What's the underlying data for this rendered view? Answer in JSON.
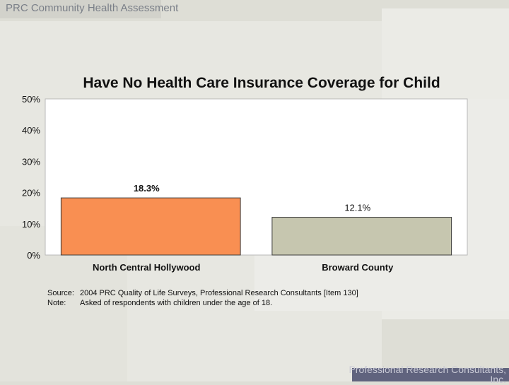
{
  "header": {
    "title": "PRC Community Health Assessment"
  },
  "footer": {
    "company_line1": "Professional Research Consultants,",
    "company_line2": "Inc."
  },
  "colors": {
    "bar1": "#f98f52",
    "bar2": "#c6c6af",
    "plot_bg": "#ffffff"
  },
  "chart_data": {
    "type": "bar",
    "title": "Have No Health Care Insurance Coverage for Child",
    "categories": [
      "North Central Hollywood",
      "Broward County"
    ],
    "values": [
      18.3,
      12.1
    ],
    "data_labels": [
      "18.3%",
      "12.1%"
    ],
    "ylim": [
      0,
      50
    ],
    "yticks": [
      "0%",
      "10%",
      "20%",
      "30%",
      "40%",
      "50%"
    ],
    "xlabel": "",
    "ylabel": ""
  },
  "notes": {
    "source_label": "Source:",
    "source_text": "2004 PRC Quality of Life Surveys, Professional Research Consultants [Item 130]",
    "note_label": "Note:",
    "note_text": "Asked of respondents with children under the age of 18."
  }
}
